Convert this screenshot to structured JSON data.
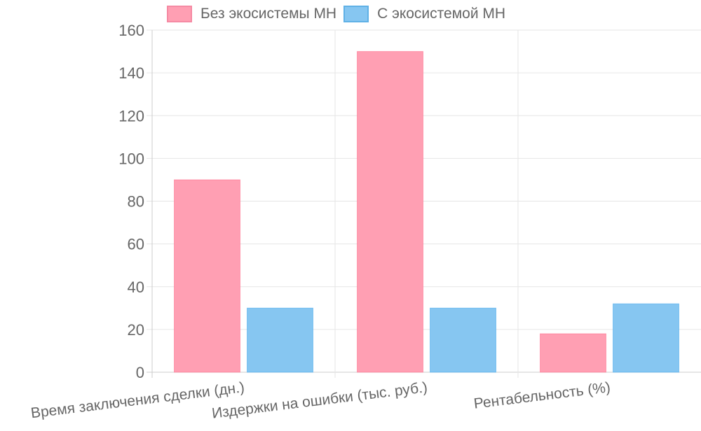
{
  "chart_data": {
    "type": "bar",
    "title": "",
    "xlabel": "",
    "ylabel": "",
    "categories": [
      "Время заключения сделки (дн.)",
      "Издержки на ошибки (тыс. руб.)",
      "Рентабельность (%)"
    ],
    "series": [
      {
        "name": "Без экосистемы МН",
        "values": [
          90,
          150,
          18
        ],
        "color": "#ff9fb3",
        "border": "#ff6384"
      },
      {
        "name": "С экосистемой МН",
        "values": [
          30,
          30,
          32
        ],
        "color": "#86c6f1",
        "border": "#36a2eb"
      }
    ],
    "ylim": [
      0,
      160
    ],
    "yticks": [
      0,
      20,
      40,
      60,
      80,
      100,
      120,
      140,
      160
    ],
    "grid": true,
    "legend_position": "top",
    "xtick_rotation": -7
  },
  "legend": {
    "items": [
      {
        "label": "Без экосистемы МН",
        "color": "#ff9fb3",
        "border": "#ff6384"
      },
      {
        "label": "С экосистемой МН",
        "color": "#86c6f1",
        "border": "#36a2eb"
      }
    ]
  }
}
